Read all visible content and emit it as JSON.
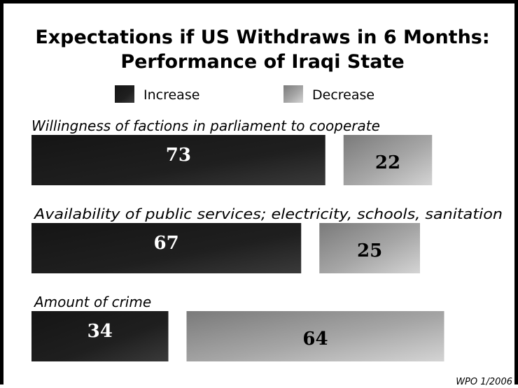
{
  "chart_data": {
    "type": "bar",
    "orientation": "horizontal",
    "title_line1": "Expectations if US Withdraws in 6 Months:",
    "title_line2": "Performance of Iraqi State",
    "categories": [
      "Willingness of factions in parliament to cooperate",
      "Availability of public services; electricity, schools, sanitation",
      "Amount of crime"
    ],
    "series": [
      {
        "name": "Increase",
        "values": [
          73,
          67,
          34
        ],
        "color": "#1e1e1e"
      },
      {
        "name": "Decrease",
        "values": [
          22,
          25,
          64
        ],
        "color": "#9a9a9a"
      }
    ],
    "legend_position": "top",
    "grid": false,
    "source": "WPO 1/2006"
  }
}
